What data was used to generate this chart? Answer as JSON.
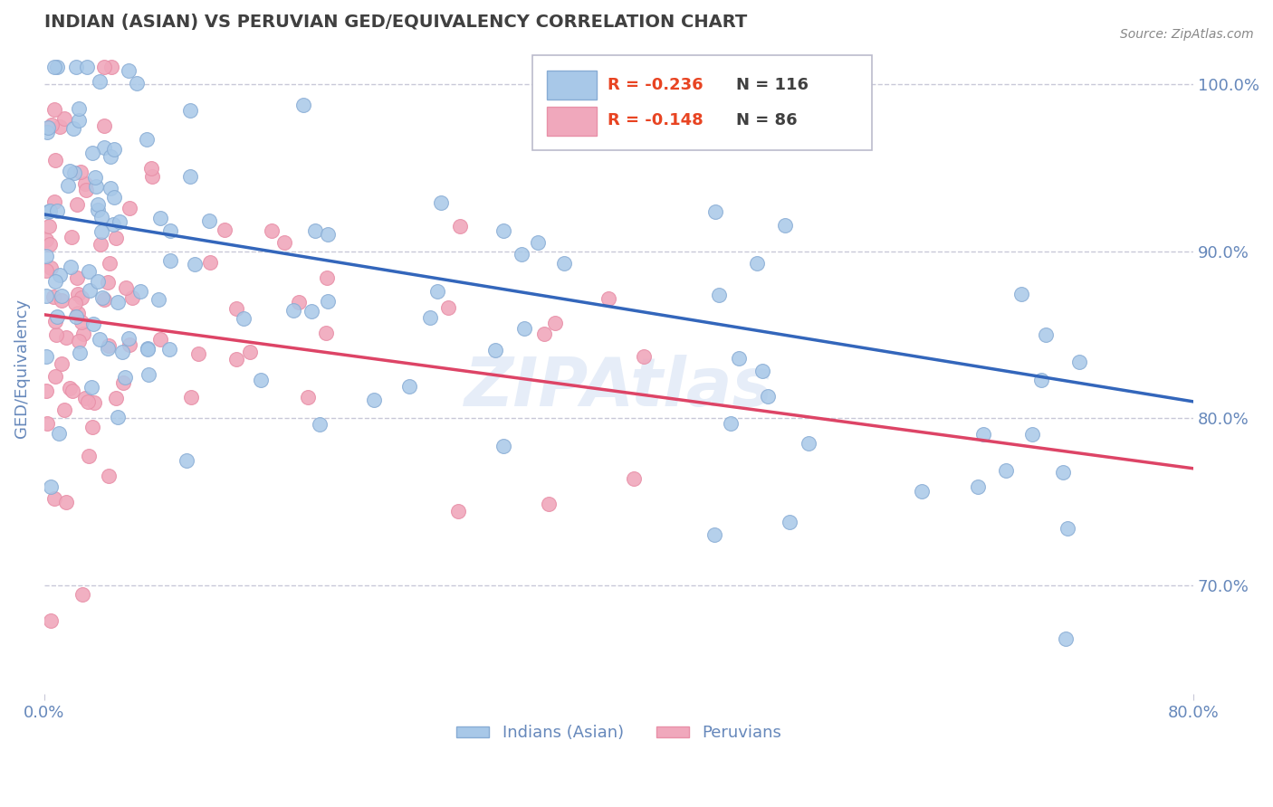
{
  "title": "INDIAN (ASIAN) VS PERUVIAN GED/EQUIVALENCY CORRELATION CHART",
  "source_text": "Source: ZipAtlas.com",
  "ylabel": "GED/Equivalency",
  "xlim": [
    0.0,
    0.8
  ],
  "ylim": [
    0.635,
    1.025
  ],
  "yticks": [
    0.7,
    0.8,
    0.9,
    1.0
  ],
  "ytick_labels": [
    "70.0%",
    "80.0%",
    "90.0%",
    "100.0%"
  ],
  "xticks": [
    0.0,
    0.8
  ],
  "xtick_labels": [
    "0.0%",
    "80.0%"
  ],
  "legend_r_blue": "-0.236",
  "legend_n_blue": "116",
  "legend_r_pink": "-0.148",
  "legend_n_pink": "86",
  "blue_color": "#a8c8e8",
  "pink_color": "#f0a8bc",
  "blue_edge_color": "#88acd4",
  "pink_edge_color": "#e890a8",
  "blue_line_color": "#3366bb",
  "pink_line_color": "#dd4466",
  "blue_n": 116,
  "pink_n": 86,
  "blue_trend_x": [
    0.0,
    0.8
  ],
  "blue_trend_y": [
    0.922,
    0.81
  ],
  "pink_trend_x": [
    0.0,
    0.8
  ],
  "pink_trend_y": [
    0.862,
    0.77
  ],
  "watermark": "ZIPAtlas",
  "background_color": "#ffffff",
  "grid_color": "#c8c8d8",
  "title_color": "#404040",
  "axis_color": "#6688bb",
  "source_color": "#888888",
  "legend_r_color": "#e84422",
  "legend_n_color": "#404040"
}
